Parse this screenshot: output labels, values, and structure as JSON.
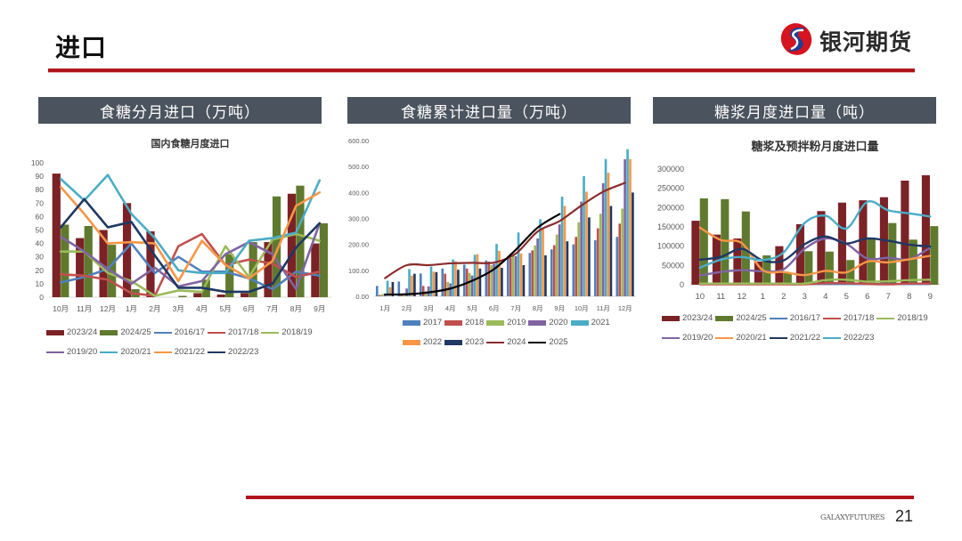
{
  "header": {
    "title": "进口",
    "logo_text": "银河期货"
  },
  "panels": [
    {
      "heading": "食糖分月进口（万吨）"
    },
    {
      "heading": "食糖累计进口量（万吨）"
    },
    {
      "heading": "糖浆月度进口量（吨）"
    }
  ],
  "footer": {
    "brand": "GALAXYFUTURES",
    "page_number": "21"
  },
  "chart_data": [
    {
      "type": "bar+line",
      "title": "国内食糖月度进口",
      "xlabel": "",
      "ylabel": "",
      "ylim": [
        0,
        100
      ],
      "yticks": [
        0,
        10,
        20,
        30,
        40,
        50,
        60,
        70,
        80,
        90,
        100
      ],
      "grid": false,
      "legend_position": "bottom",
      "categories": [
        "10月",
        "11月",
        "12月",
        "1月",
        "2月",
        "3月",
        "4月",
        "5月",
        "6月",
        "7月",
        "8月",
        "9月"
      ],
      "bar_series": [
        {
          "name": "2023/24",
          "color": "#7b2226",
          "values": [
            92,
            44,
            50,
            70,
            49,
            0,
            3,
            2,
            3,
            41,
            77,
            40
          ]
        },
        {
          "name": "2024/25",
          "color": "#5f7a2e",
          "values": [
            54,
            53,
            39,
            6,
            0,
            1,
            13,
            32,
            41,
            75,
            83,
            55
          ]
        }
      ],
      "line_series": [
        {
          "name": "2016/17",
          "color": "#4f81bd",
          "values": [
            11,
            15,
            21,
            40,
            18,
            30,
            19,
            19,
            14,
            6,
            19,
            16
          ]
        },
        {
          "name": "2017/18",
          "color": "#c0504d",
          "values": [
            17,
            16,
            13,
            3,
            1,
            38,
            47,
            24,
            28,
            25,
            15,
            19
          ]
        },
        {
          "name": "2018/19",
          "color": "#9bbb59",
          "values": [
            34,
            34,
            18,
            12,
            1,
            5,
            4,
            38,
            15,
            43,
            47,
            42
          ]
        },
        {
          "name": "2019/20",
          "color": "#8064a2",
          "values": [
            45,
            34,
            21,
            10,
            22,
            8,
            12,
            32,
            41,
            32,
            6,
            55
          ]
        },
        {
          "name": "2020/21",
          "color": "#4bacc6",
          "values": [
            88,
            72,
            91,
            62,
            44,
            20,
            18,
            18,
            42,
            44,
            48,
            87
          ]
        },
        {
          "name": "2021/22",
          "color": "#f79646",
          "values": [
            82,
            62,
            40,
            41,
            40,
            12,
            42,
            24,
            14,
            27,
            68,
            78
          ]
        },
        {
          "name": "2022/23",
          "color": "#1f3864",
          "values": [
            52,
            73,
            52,
            56,
            31,
            7,
            7,
            4,
            4,
            10,
            37,
            55
          ]
        }
      ]
    },
    {
      "type": "bar+line",
      "title": "",
      "xlabel": "",
      "ylabel": "",
      "ylim": [
        0,
        600
      ],
      "yticks": [
        "0.00",
        "100.00",
        "200.00",
        "300.00",
        "400.00",
        "500.00",
        "600.00"
      ],
      "grid": false,
      "legend_position": "bottom",
      "categories": [
        "1月",
        "2月",
        "3月",
        "4月",
        "5月",
        "6月",
        "7月",
        "8月",
        "9月",
        "10月",
        "11月",
        "12月"
      ],
      "bar_series": [
        {
          "name": "2017",
          "color": "#4f81bd",
          "values": [
            40,
            57,
            88,
            107,
            122,
            138,
            150,
            167,
            181,
            200,
            216,
            229
          ]
        },
        {
          "name": "2018",
          "color": "#c0504d",
          "values": [
            5,
            8,
            40,
            87,
            107,
            134,
            148,
            177,
            197,
            229,
            262,
            280
          ]
        },
        {
          "name": "2019",
          "color": "#9bbb59",
          "values": [
            8,
            12,
            20,
            55,
            90,
            120,
            158,
            196,
            238,
            285,
            318,
            338
          ]
        },
        {
          "name": "2020",
          "color": "#8064a2",
          "values": [
            10,
            30,
            38,
            50,
            80,
            125,
            155,
            223,
            277,
            365,
            436,
            528
          ]
        },
        {
          "name": "2021",
          "color": "#4bacc6",
          "values": [
            60,
            105,
            115,
            142,
            160,
            202,
            246,
            297,
            384,
            463,
            529,
            567
          ]
        },
        {
          "name": "2022",
          "color": "#f79646",
          "values": [
            35,
            80,
            95,
            135,
            162,
            175,
            165,
            260,
            348,
            403,
            476,
            529
          ]
        },
        {
          "name": "2023",
          "color": "#1f3864",
          "values": [
            55,
            87,
            93,
            102,
            107,
            110,
            120,
            158,
            212,
            304,
            348,
            400
          ]
        }
      ],
      "line_series": [
        {
          "name": "2024",
          "color": "#8b2c2c",
          "values": [
            70,
            120,
            120,
            127,
            129,
            130,
            165,
            250,
            290,
            350,
            403,
            437
          ]
        },
        {
          "name": "2025",
          "color": "#000000",
          "values": [
            7,
            8,
            15,
            30,
            60,
            105,
            180,
            265,
            317,
            null,
            null,
            null
          ]
        }
      ]
    },
    {
      "type": "bar+line",
      "title": "糖浆及预拌粉月度进口量",
      "xlabel": "",
      "ylabel": "",
      "ylim": [
        0,
        300000
      ],
      "yticks": [
        0,
        50000,
        100000,
        150000,
        200000,
        250000,
        300000
      ],
      "grid": false,
      "legend_position": "bottom",
      "categories": [
        "10",
        "11",
        "12",
        "1",
        "2",
        "3",
        "4",
        "5",
        "6",
        "7",
        "8",
        "9"
      ],
      "bar_series": [
        {
          "name": "2023/24",
          "color": "#7b2226",
          "values": [
            166000,
            130000,
            120000,
            60000,
            100000,
            157000,
            191000,
            213000,
            219000,
            227000,
            270000,
            284000
          ]
        },
        {
          "name": "2024/25",
          "color": "#5f7a2e",
          "values": [
            224000,
            222000,
            190000,
            76000,
            32000,
            87000,
            86000,
            64000,
            120000,
            160000,
            117000,
            152000
          ]
        }
      ],
      "line_series": [
        {
          "name": "2016/17",
          "color": "#4f81bd",
          "values": [
            2000,
            2000,
            2000,
            2000,
            2000,
            2000,
            2000,
            2000,
            2000,
            2000,
            2000,
            2000
          ]
        },
        {
          "name": "2017/18",
          "color": "#c0504d",
          "values": [
            1000,
            1000,
            1000,
            1000,
            1000,
            1000,
            4000,
            4000,
            2000,
            1000,
            3000,
            3000
          ]
        },
        {
          "name": "2018/19",
          "color": "#9bbb59",
          "values": [
            3000,
            3000,
            3000,
            3000,
            3000,
            3000,
            12000,
            13000,
            8000,
            9000,
            12000,
            13000
          ]
        },
        {
          "name": "2019/20",
          "color": "#8064a2",
          "values": [
            24000,
            33000,
            38000,
            35000,
            40000,
            93000,
            120000,
            106000,
            68000,
            70000,
            66000,
            96000
          ]
        },
        {
          "name": "2020/21",
          "color": "#f79646",
          "values": [
            148000,
            116000,
            108000,
            38000,
            33000,
            25000,
            36000,
            32000,
            60000,
            58000,
            66000,
            75000
          ]
        },
        {
          "name": "2021/22",
          "color": "#1f3864",
          "values": [
            65000,
            72000,
            93000,
            63000,
            63000,
            105000,
            125000,
            107000,
            120000,
            114000,
            104000,
            99000
          ]
        },
        {
          "name": "2022/23",
          "color": "#4bacc6",
          "values": [
            44000,
            65000,
            72000,
            64000,
            84000,
            160000,
            179000,
            146000,
            215000,
            193000,
            185000,
            177000
          ]
        }
      ]
    }
  ]
}
